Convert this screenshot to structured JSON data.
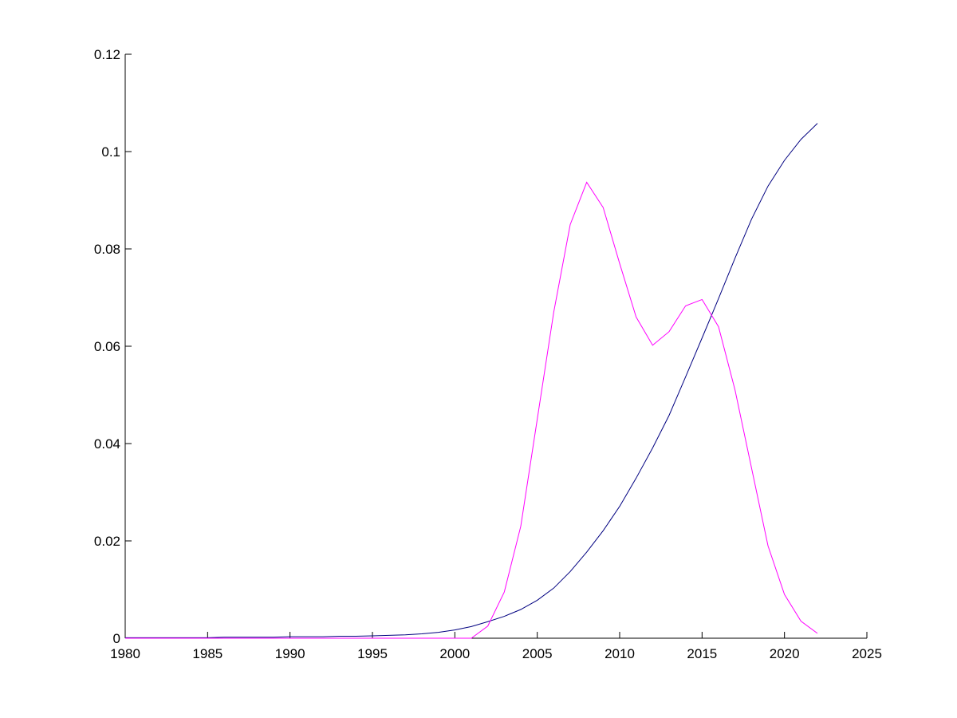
{
  "chart_data": {
    "type": "line",
    "x": [
      1980,
      1981,
      1982,
      1983,
      1984,
      1985,
      1986,
      1987,
      1988,
      1989,
      1990,
      1991,
      1992,
      1993,
      1994,
      1995,
      1996,
      1997,
      1998,
      1999,
      2000,
      2001,
      2002,
      2003,
      2004,
      2005,
      2006,
      2007,
      2008,
      2009,
      2010,
      2011,
      2012,
      2013,
      2014,
      2015,
      2016,
      2017,
      2018,
      2019,
      2020,
      2021,
      2022
    ],
    "series": [
      {
        "color": "#000080",
        "values": [
          0.0001,
          0.0001,
          0.0001,
          0.0001,
          0.0001,
          0.0001,
          0.0002,
          0.0002,
          0.0002,
          0.0002,
          0.0003,
          0.0003,
          0.0003,
          0.0004,
          0.0004,
          0.0005,
          0.0006,
          0.0007,
          0.0009,
          0.0012,
          0.0017,
          0.0024,
          0.0034,
          0.0045,
          0.0059,
          0.0078,
          0.0103,
          0.0137,
          0.0177,
          0.0221,
          0.0271,
          0.0329,
          0.0391,
          0.0458,
          0.0537,
          0.0617,
          0.0698,
          0.0781,
          0.0861,
          0.0929,
          0.0982,
          0.1025,
          0.1058
        ]
      },
      {
        "color": "#ff00ff",
        "values": [
          0,
          0,
          0,
          0,
          0,
          0,
          0,
          0,
          0,
          0,
          0,
          0,
          0,
          0,
          0,
          0,
          0,
          0,
          0,
          0,
          0,
          0,
          0.0025,
          0.0095,
          0.023,
          0.045,
          0.067,
          0.085,
          0.0937,
          0.0885,
          0.077,
          0.066,
          0.0602,
          0.063,
          0.0683,
          0.0696,
          0.064,
          0.051,
          0.035,
          0.019,
          0.009,
          0.0035,
          0.001
        ]
      }
    ],
    "xlim": [
      1980,
      2025
    ],
    "xticks": [
      1980,
      1985,
      1990,
      1995,
      2000,
      2005,
      2010,
      2015,
      2020,
      2025
    ],
    "ylim": [
      0,
      0.12
    ],
    "yticks": [
      0,
      0.02,
      0.04,
      0.06,
      0.08,
      0.1,
      0.12
    ]
  }
}
